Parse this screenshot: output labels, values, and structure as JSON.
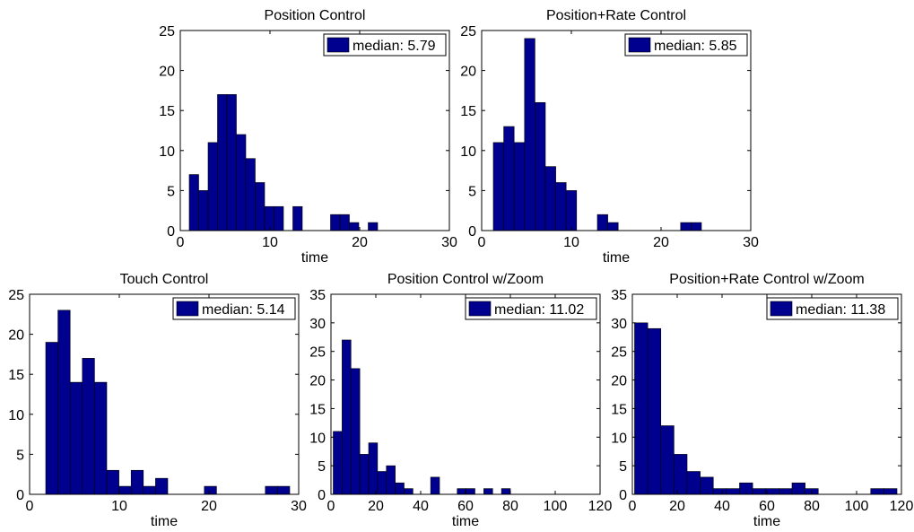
{
  "chart_data": [
    {
      "type": "bar",
      "title": "Position Control",
      "xlabel": "time",
      "ylabel": "",
      "xlim": [
        0,
        30
      ],
      "ylim": [
        0,
        25
      ],
      "xticks": [
        0,
        10,
        20,
        30
      ],
      "yticks": [
        0,
        5,
        10,
        15,
        20,
        25
      ],
      "legend": "median: 5.79",
      "bin_start": 1.0,
      "bin_width": 1.05,
      "values": [
        7,
        5,
        11,
        17,
        17,
        12,
        9,
        6,
        3,
        3,
        0,
        3,
        0,
        0,
        0,
        2,
        2,
        1,
        0,
        1
      ],
      "grid": false,
      "legend_position": "top-right"
    },
    {
      "type": "bar",
      "title": "Position+Rate Control",
      "xlabel": "time",
      "ylabel": "",
      "xlim": [
        0,
        30
      ],
      "ylim": [
        0,
        25
      ],
      "xticks": [
        0,
        10,
        20,
        30
      ],
      "yticks": [
        0,
        5,
        10,
        15,
        20,
        25
      ],
      "legend": "median: 5.85",
      "bin_start": 1.3,
      "bin_width": 1.16,
      "values": [
        11,
        13,
        11,
        24,
        16,
        8,
        6,
        5,
        0,
        0,
        2,
        1,
        0,
        0,
        0,
        0,
        0,
        0,
        1,
        1
      ],
      "grid": false,
      "legend_position": "top-right"
    },
    {
      "type": "bar",
      "title": "Touch Control",
      "xlabel": "time",
      "ylabel": "",
      "xlim": [
        0,
        30
      ],
      "ylim": [
        0,
        25
      ],
      "xticks": [
        0,
        10,
        20,
        30
      ],
      "yticks": [
        0,
        5,
        10,
        15,
        20,
        25
      ],
      "legend": "median: 5.14",
      "bin_start": 1.8,
      "bin_width": 1.36,
      "values": [
        19,
        23,
        14,
        17,
        14,
        3,
        1,
        3,
        1,
        2,
        0,
        0,
        0,
        1,
        0,
        0,
        0,
        0,
        1,
        1
      ],
      "grid": false,
      "legend_position": "top-right"
    },
    {
      "type": "bar",
      "title": "Position Control w/Zoom",
      "xlabel": "time",
      "ylabel": "",
      "xlim": [
        0,
        120
      ],
      "ylim": [
        0,
        35
      ],
      "xticks": [
        0,
        20,
        40,
        60,
        80,
        100,
        120
      ],
      "yticks": [
        0,
        5,
        10,
        15,
        20,
        25,
        30,
        35
      ],
      "legend": "median: 11.02",
      "bin_start": 1.0,
      "bin_width": 3.95,
      "values": [
        11,
        27,
        22,
        7,
        9,
        4,
        5,
        2,
        1,
        0,
        0,
        3,
        0,
        0,
        1,
        1,
        0,
        1,
        0,
        1
      ],
      "grid": false,
      "legend_position": "top-right"
    },
    {
      "type": "bar",
      "title": "Position+Rate Control w/Zoom",
      "xlabel": "time",
      "ylabel": "",
      "xlim": [
        0,
        120
      ],
      "ylim": [
        0,
        35
      ],
      "xticks": [
        0,
        20,
        40,
        60,
        80,
        100,
        120
      ],
      "yticks": [
        0,
        5,
        10,
        15,
        20,
        25,
        30,
        35
      ],
      "legend": "median: 11.38",
      "bin_start": 1.0,
      "bin_width": 5.85,
      "values": [
        30,
        29,
        12,
        7,
        4,
        3,
        1,
        1,
        2,
        1,
        1,
        1,
        2,
        1,
        0,
        0,
        0,
        0,
        1,
        1
      ],
      "grid": false,
      "legend_position": "top-right"
    }
  ],
  "colors": {
    "bar_fill": "#00008f",
    "bar_edge": "#000000",
    "axes": "#000000"
  }
}
